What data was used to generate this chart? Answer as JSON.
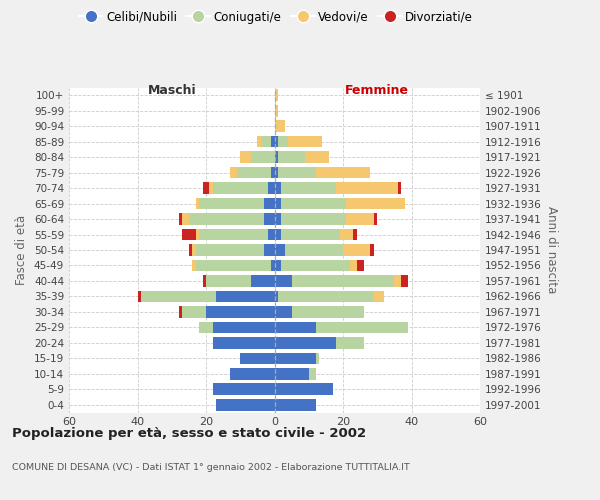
{
  "age_groups": [
    "0-4",
    "5-9",
    "10-14",
    "15-19",
    "20-24",
    "25-29",
    "30-34",
    "35-39",
    "40-44",
    "45-49",
    "50-54",
    "55-59",
    "60-64",
    "65-69",
    "70-74",
    "75-79",
    "80-84",
    "85-89",
    "90-94",
    "95-99",
    "100+"
  ],
  "birth_years": [
    "1997-2001",
    "1992-1996",
    "1987-1991",
    "1982-1986",
    "1977-1981",
    "1972-1976",
    "1967-1971",
    "1962-1966",
    "1957-1961",
    "1952-1956",
    "1947-1951",
    "1942-1946",
    "1937-1941",
    "1932-1936",
    "1927-1931",
    "1922-1926",
    "1917-1921",
    "1912-1916",
    "1907-1911",
    "1902-1906",
    "≤ 1901"
  ],
  "maschi": {
    "celibi": [
      17,
      18,
      13,
      10,
      18,
      18,
      20,
      17,
      7,
      1,
      3,
      2,
      3,
      3,
      2,
      1,
      0,
      1,
      0,
      0,
      0
    ],
    "coniugati": [
      0,
      0,
      0,
      0,
      0,
      4,
      7,
      22,
      13,
      22,
      20,
      20,
      22,
      19,
      16,
      10,
      7,
      3,
      0,
      0,
      0
    ],
    "vedovi": [
      0,
      0,
      0,
      0,
      0,
      0,
      0,
      0,
      0,
      1,
      1,
      1,
      2,
      1,
      1,
      2,
      3,
      1,
      0,
      0,
      0
    ],
    "divorziati": [
      0,
      0,
      0,
      0,
      0,
      0,
      1,
      1,
      1,
      0,
      1,
      4,
      1,
      0,
      2,
      0,
      0,
      0,
      0,
      0,
      0
    ]
  },
  "femmine": {
    "nubili": [
      12,
      17,
      10,
      12,
      18,
      12,
      5,
      1,
      5,
      2,
      3,
      2,
      2,
      2,
      2,
      1,
      1,
      1,
      0,
      0,
      0
    ],
    "coniugate": [
      0,
      0,
      2,
      1,
      8,
      27,
      21,
      28,
      30,
      20,
      17,
      17,
      19,
      19,
      16,
      11,
      8,
      3,
      0,
      0,
      0
    ],
    "vedove": [
      0,
      0,
      0,
      0,
      0,
      0,
      0,
      3,
      2,
      2,
      8,
      4,
      8,
      17,
      18,
      16,
      7,
      10,
      3,
      1,
      1
    ],
    "divorziate": [
      0,
      0,
      0,
      0,
      0,
      0,
      0,
      0,
      2,
      2,
      1,
      1,
      1,
      0,
      1,
      0,
      0,
      0,
      0,
      0,
      0
    ]
  },
  "colors": {
    "celibi": "#4472c4",
    "coniugati": "#b8d4a0",
    "vedovi": "#f5c76e",
    "divorziati": "#cc2222"
  },
  "xlim": 60,
  "title": "Popolazione per età, sesso e stato civile - 2002",
  "subtitle": "COMUNE DI DESANA (VC) - Dati ISTAT 1° gennaio 2002 - Elaborazione TUTTITALIA.IT",
  "ylabel_left": "Fasce di età",
  "ylabel_right": "Anni di nascita",
  "label_maschi": "Maschi",
  "label_femmine": "Femmine",
  "bg_color": "#f0f0f0",
  "plot_bg": "#ffffff",
  "legend_labels": [
    "Celibi/Nubili",
    "Coniugati/e",
    "Vedovi/e",
    "Divorziati/e"
  ]
}
